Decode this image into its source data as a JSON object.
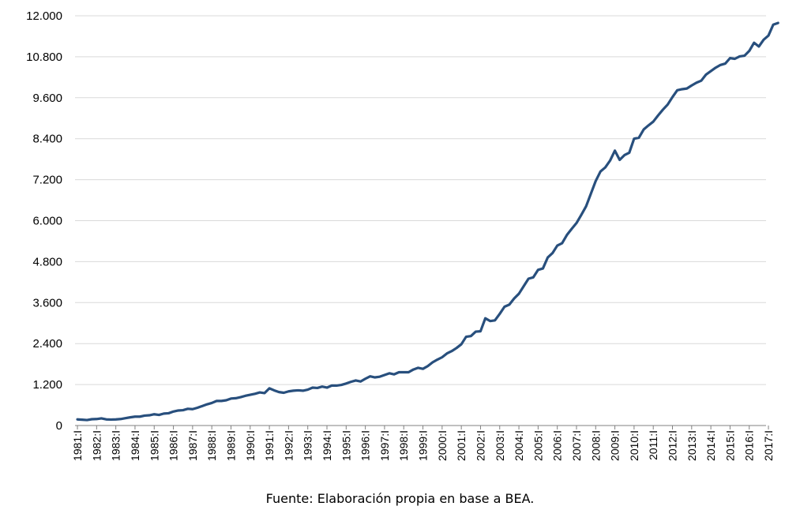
{
  "source_note": "Fuente: Elaboración propia en base a BEA.",
  "chart_data": {
    "type": "line",
    "title": "",
    "xlabel": "",
    "ylabel": "",
    "ylim": [
      0,
      12000
    ],
    "yticks": [
      0,
      1200,
      2400,
      3600,
      4800,
      6000,
      7200,
      8400,
      9600,
      10800,
      12000
    ],
    "ytick_labels": [
      "0",
      "1.200",
      "2.400",
      "3.600",
      "4.800",
      "6.000",
      "7.200",
      "8.400",
      "9.600",
      "10.800",
      "12.000"
    ],
    "xtick_labels": [
      "1981:I",
      "1982:I",
      "1983:I",
      "1984:I",
      "1985:I",
      "1986:I",
      "1987:I",
      "1988:I",
      "1989:I",
      "1990:I",
      "1991:I",
      "1992:I",
      "1993:I",
      "1994:I",
      "1995:I",
      "1996:I",
      "1997:I",
      "1998:I",
      "1999:I",
      "2000:I",
      "2001:I",
      "2002:I",
      "2003:I",
      "2004:I",
      "2005:I",
      "2006:I",
      "2007:I",
      "2008:I",
      "2009:I",
      "2010:I",
      "2011:I",
      "2012:I",
      "2013:I",
      "2014:I",
      "2015:I",
      "2016:I",
      "2017:I"
    ],
    "grid": true,
    "legend": "none",
    "color": "#284f7d",
    "series": [
      {
        "values": [
          180,
          170,
          160,
          185,
          190,
          210,
          180,
          175,
          180,
          190,
          215,
          240,
          260,
          260,
          290,
          300,
          330,
          310,
          350,
          360,
          410,
          440,
          450,
          490,
          480,
          520,
          570,
          620,
          660,
          720,
          720,
          740,
          790,
          800,
          830,
          870,
          900,
          930,
          970,
          950,
          1090,
          1030,
          980,
          960,
          1000,
          1020,
          1030,
          1020,
          1050,
          1110,
          1100,
          1140,
          1110,
          1170,
          1170,
          1190,
          1230,
          1280,
          1320,
          1290,
          1370,
          1440,
          1410,
          1430,
          1480,
          1530,
          1500,
          1560,
          1560,
          1560,
          1640,
          1690,
          1660,
          1740,
          1850,
          1930,
          2000,
          2110,
          2180,
          2270,
          2380,
          2600,
          2620,
          2750,
          2760,
          3140,
          3060,
          3080,
          3270,
          3480,
          3540,
          3720,
          3860,
          4080,
          4300,
          4340,
          4560,
          4600,
          4920,
          5050,
          5270,
          5340,
          5580,
          5760,
          5930,
          6170,
          6420,
          6790,
          7160,
          7440,
          7560,
          7760,
          8050,
          7780,
          7920,
          7990,
          8400,
          8430,
          8670,
          8790,
          8900,
          9080,
          9250,
          9400,
          9620,
          9820,
          9850,
          9870,
          9960,
          10040,
          10100,
          10280,
          10380,
          10480,
          10560,
          10600,
          10760,
          10740,
          10810,
          10830,
          10970,
          11210,
          11100,
          11300,
          11420,
          11740,
          11790
        ]
      }
    ]
  }
}
